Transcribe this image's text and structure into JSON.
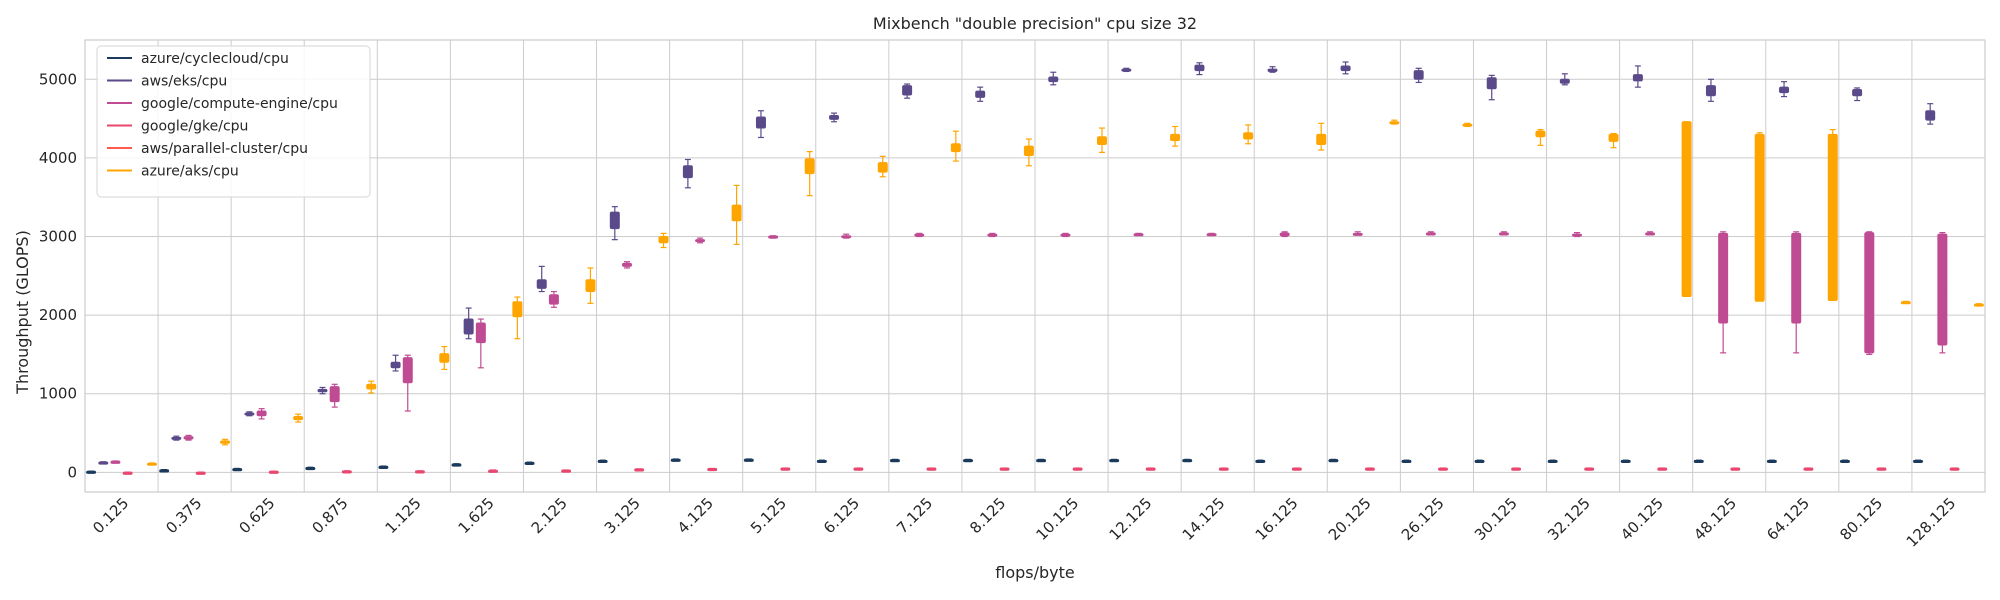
{
  "chart_data": {
    "type": "box",
    "title": "Mixbench \"double precision\" cpu size 32",
    "xlabel": "flops/byte",
    "ylabel": "Throughput (GLOPS)",
    "ylim": [
      -250,
      5500
    ],
    "yticks": [
      0,
      1000,
      2000,
      3000,
      4000,
      5000
    ],
    "grid": true,
    "legend_position": "top-left",
    "categories": [
      "0.125",
      "0.375",
      "0.625",
      "0.875",
      "1.125",
      "1.625",
      "2.125",
      "3.125",
      "4.125",
      "5.125",
      "6.125",
      "7.125",
      "8.125",
      "10.125",
      "12.125",
      "14.125",
      "16.125",
      "20.125",
      "26.125",
      "30.125",
      "32.125",
      "40.125",
      "48.125",
      "64.125",
      "80.125",
      "128.125"
    ],
    "series": [
      {
        "name": "azure/cyclecloud/cpu",
        "color": "#1b3a5c",
        "boxes": [
          [
            5,
            8,
            10,
            12,
            15
          ],
          [
            20,
            25,
            28,
            30,
            35
          ],
          [
            35,
            40,
            43,
            45,
            50
          ],
          [
            50,
            55,
            58,
            60,
            65
          ],
          [
            65,
            70,
            73,
            75,
            80
          ],
          [
            95,
            100,
            103,
            105,
            110
          ],
          [
            115,
            120,
            123,
            125,
            130
          ],
          [
            140,
            145,
            148,
            150,
            155
          ],
          [
            155,
            160,
            163,
            165,
            170
          ],
          [
            155,
            160,
            163,
            165,
            170
          ],
          [
            140,
            145,
            148,
            150,
            155
          ],
          [
            150,
            155,
            158,
            160,
            165
          ],
          [
            150,
            155,
            158,
            160,
            165
          ],
          [
            150,
            155,
            158,
            160,
            165
          ],
          [
            150,
            155,
            158,
            160,
            165
          ],
          [
            150,
            155,
            158,
            160,
            165
          ],
          [
            140,
            145,
            148,
            150,
            155
          ],
          [
            150,
            155,
            158,
            160,
            165
          ],
          [
            140,
            145,
            148,
            150,
            155
          ],
          [
            140,
            145,
            148,
            150,
            155
          ],
          [
            140,
            145,
            148,
            150,
            155
          ],
          [
            140,
            145,
            148,
            150,
            155
          ],
          [
            140,
            145,
            148,
            150,
            155
          ],
          [
            140,
            145,
            148,
            150,
            155
          ],
          [
            140,
            145,
            148,
            150,
            155
          ],
          [
            140,
            145,
            148,
            150,
            155
          ]
        ]
      },
      {
        "name": "aws/eks/cpu",
        "color": "#5b4a8a",
        "boxes": [
          [
            115,
            120,
            125,
            130,
            135
          ],
          [
            410,
            425,
            435,
            445,
            460
          ],
          [
            720,
            735,
            745,
            755,
            770
          ],
          [
            1000,
            1025,
            1040,
            1055,
            1080
          ],
          [
            1290,
            1330,
            1360,
            1400,
            1490
          ],
          [
            1700,
            1760,
            1850,
            1950,
            2090
          ],
          [
            2300,
            2340,
            2380,
            2450,
            2620
          ],
          [
            2960,
            3100,
            3200,
            3310,
            3380
          ],
          [
            3620,
            3750,
            3820,
            3900,
            3980
          ],
          [
            4260,
            4380,
            4450,
            4520,
            4600
          ],
          [
            4460,
            4490,
            4510,
            4540,
            4570
          ],
          [
            4760,
            4800,
            4860,
            4920,
            4940
          ],
          [
            4720,
            4770,
            4810,
            4850,
            4900
          ],
          [
            4930,
            4970,
            4990,
            5030,
            5090
          ],
          [
            5100,
            5110,
            5120,
            5130,
            5140
          ],
          [
            5060,
            5110,
            5140,
            5180,
            5210
          ],
          [
            5090,
            5100,
            5120,
            5130,
            5160
          ],
          [
            5070,
            5110,
            5140,
            5170,
            5220
          ],
          [
            4960,
            5000,
            5040,
            5110,
            5140
          ],
          [
            4740,
            4880,
            4920,
            5020,
            5050
          ],
          [
            4930,
            4950,
            4970,
            5000,
            5070
          ],
          [
            4900,
            4980,
            5020,
            5060,
            5170
          ],
          [
            4720,
            4790,
            4850,
            4920,
            5000
          ],
          [
            4780,
            4830,
            4870,
            4900,
            4970
          ],
          [
            4730,
            4790,
            4830,
            4870,
            4890
          ],
          [
            4430,
            4480,
            4530,
            4600,
            4690
          ]
        ]
      },
      {
        "name": "google/compute-engine/cpu",
        "color": "#bf4b93",
        "boxes": [
          [
            130,
            135,
            138,
            140,
            145
          ],
          [
            410,
            425,
            440,
            455,
            470
          ],
          [
            680,
            720,
            750,
            780,
            810
          ],
          [
            830,
            900,
            1000,
            1090,
            1120
          ],
          [
            780,
            1140,
            1300,
            1460,
            1490
          ],
          [
            1330,
            1650,
            1800,
            1900,
            1950
          ],
          [
            2100,
            2140,
            2180,
            2260,
            2300
          ],
          [
            2600,
            2620,
            2640,
            2660,
            2680
          ],
          [
            2920,
            2940,
            2950,
            2960,
            2980
          ],
          [
            2980,
            2990,
            3000,
            3005,
            3010
          ],
          [
            2980,
            2990,
            3000,
            3010,
            3030
          ],
          [
            3000,
            3010,
            3020,
            3030,
            3040
          ],
          [
            3000,
            3010,
            3020,
            3030,
            3040
          ],
          [
            3000,
            3010,
            3020,
            3030,
            3040
          ],
          [
            3020,
            3025,
            3030,
            3035,
            3040
          ],
          [
            3020,
            3025,
            3030,
            3035,
            3040
          ],
          [
            3000,
            3010,
            3030,
            3045,
            3060
          ],
          [
            3020,
            3025,
            3030,
            3040,
            3060
          ],
          [
            3030,
            3035,
            3040,
            3045,
            3060
          ],
          [
            3030,
            3035,
            3040,
            3045,
            3060
          ],
          [
            3000,
            3010,
            3020,
            3030,
            3050
          ],
          [
            3030,
            3035,
            3040,
            3045,
            3060
          ],
          [
            1520,
            1900,
            2500,
            3040,
            3060
          ],
          [
            1520,
            1900,
            2500,
            3040,
            3060
          ],
          [
            1500,
            1520,
            2300,
            3050,
            3060
          ],
          [
            1520,
            1620,
            2300,
            3030,
            3050
          ]
        ]
      },
      {
        "name": "google/gke/cpu",
        "color": "#e8476f",
        "boxes": [
          [
            -8,
            -4,
            -2,
            0,
            3
          ],
          [
            -8,
            -4,
            -2,
            0,
            3
          ],
          [
            5,
            8,
            10,
            12,
            15
          ],
          [
            10,
            13,
            15,
            17,
            20
          ],
          [
            10,
            13,
            15,
            17,
            20
          ],
          [
            15,
            20,
            23,
            25,
            30
          ],
          [
            20,
            23,
            25,
            27,
            30
          ],
          [
            35,
            38,
            40,
            42,
            45
          ],
          [
            40,
            43,
            45,
            47,
            50
          ],
          [
            45,
            48,
            50,
            52,
            55
          ],
          [
            45,
            48,
            50,
            52,
            55
          ],
          [
            45,
            48,
            50,
            52,
            55
          ],
          [
            45,
            48,
            50,
            52,
            55
          ],
          [
            45,
            48,
            50,
            52,
            55
          ],
          [
            45,
            48,
            50,
            52,
            55
          ],
          [
            45,
            48,
            50,
            52,
            55
          ],
          [
            45,
            48,
            50,
            52,
            55
          ],
          [
            45,
            48,
            50,
            52,
            55
          ],
          [
            45,
            48,
            50,
            52,
            55
          ],
          [
            45,
            48,
            50,
            52,
            55
          ],
          [
            45,
            48,
            50,
            52,
            55
          ],
          [
            45,
            48,
            50,
            52,
            55
          ],
          [
            45,
            48,
            50,
            52,
            55
          ],
          [
            45,
            48,
            50,
            52,
            55
          ],
          [
            45,
            48,
            50,
            52,
            55
          ],
          [
            45,
            48,
            50,
            52,
            55
          ]
        ]
      },
      {
        "name": "aws/parallel-cluster/cpu",
        "color": "#ff5a4d",
        "boxes": []
      },
      {
        "name": "azure/aks/cpu",
        "color": "#ffa500",
        "boxes": [
          [
            100,
            105,
            110,
            115,
            120
          ],
          [
            350,
            370,
            385,
            400,
            420
          ],
          [
            640,
            670,
            690,
            710,
            740
          ],
          [
            1010,
            1060,
            1090,
            1120,
            1160
          ],
          [
            1310,
            1400,
            1460,
            1510,
            1600
          ],
          [
            1700,
            1980,
            2080,
            2170,
            2230
          ],
          [
            2150,
            2300,
            2380,
            2450,
            2600
          ],
          [
            2860,
            2920,
            2960,
            3000,
            3040
          ],
          [
            2900,
            3200,
            3300,
            3400,
            3650
          ],
          [
            3520,
            3800,
            3880,
            3990,
            4080
          ],
          [
            3760,
            3820,
            3860,
            3940,
            4020
          ],
          [
            3960,
            4080,
            4130,
            4180,
            4340
          ],
          [
            3900,
            4030,
            4080,
            4150,
            4240
          ],
          [
            4070,
            4170,
            4210,
            4270,
            4380
          ],
          [
            4150,
            4220,
            4260,
            4300,
            4400
          ],
          [
            4180,
            4240,
            4280,
            4320,
            4420
          ],
          [
            4100,
            4170,
            4240,
            4300,
            4440
          ],
          [
            4430,
            4440,
            4450,
            4460,
            4480
          ],
          [
            4400,
            4410,
            4420,
            4430,
            4440
          ],
          [
            4160,
            4270,
            4300,
            4340,
            4360
          ],
          [
            4130,
            4210,
            4260,
            4300,
            4310
          ],
          [
            2240,
            2240,
            2240,
            4460,
            4460
          ],
          [
            2180,
            2180,
            2180,
            4300,
            4320
          ],
          [
            2190,
            2190,
            2190,
            4300,
            4360
          ],
          [
            2155,
            2160,
            2165,
            2170,
            2175
          ],
          [
            2125,
            2130,
            2135,
            2140,
            2145
          ]
        ]
      }
    ]
  }
}
